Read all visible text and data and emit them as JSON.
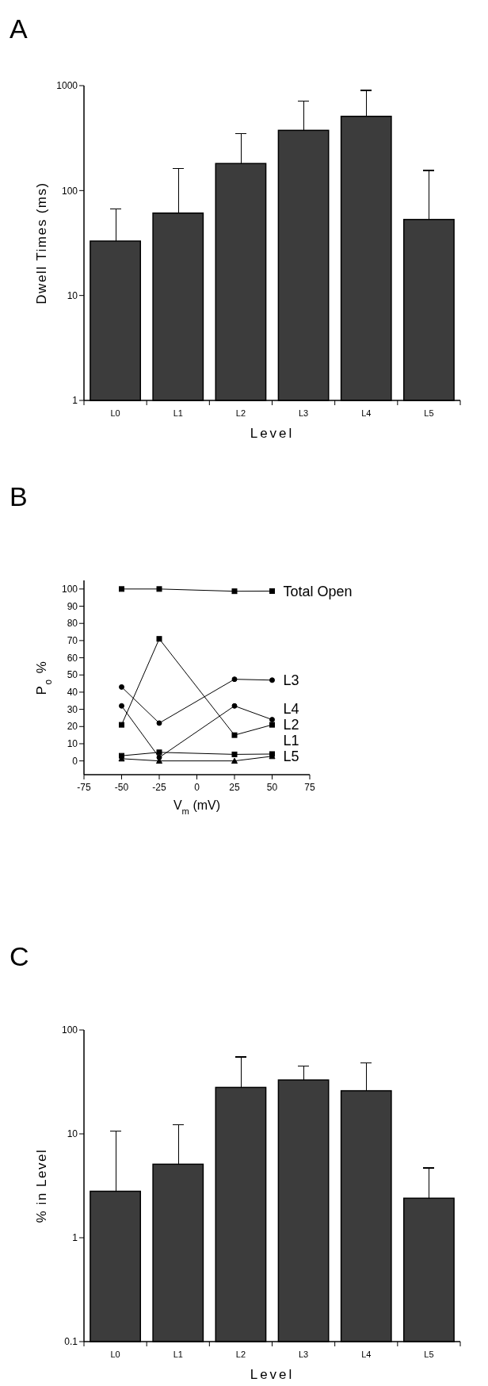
{
  "chart_data": [
    {
      "type": "bar",
      "title": "A",
      "xlabel": "Level",
      "ylabel": "Dwell Times (ms)",
      "categories": [
        "L0",
        "L1",
        "L2",
        "L3",
        "L4",
        "L5"
      ],
      "values": [
        33,
        61,
        181,
        375,
        510,
        53
      ],
      "errors": [
        [
          33,
          67
        ],
        [
          61,
          163
        ],
        [
          181,
          347
        ],
        [
          375,
          714
        ],
        [
          510,
          900
        ],
        [
          53,
          155
        ]
      ],
      "color": "#3c3c3c",
      "log": true,
      "ylim": [
        1,
        1000
      ],
      "yticks": [
        1,
        10,
        100,
        1000
      ]
    },
    {
      "type": "line",
      "title": "B",
      "xlabel": "V$_{m}$ (mV)",
      "ylabel": "P$_{o}$ %",
      "x": [
        -50,
        -25,
        25,
        50
      ],
      "xlim": [
        -75,
        75
      ],
      "xticks": [
        -75,
        -50,
        -25,
        0,
        25,
        50,
        75
      ],
      "ylim": [
        -8,
        105
      ],
      "yticks": [
        0,
        10,
        20,
        30,
        40,
        50,
        60,
        70,
        80,
        90,
        100
      ],
      "series": [
        {
          "name": "Total Open",
          "color": "#000000",
          "marker": "square",
          "values": [
            100,
            100,
            98.7,
            98.8
          ]
        },
        {
          "name": "L3",
          "color": "#000000",
          "marker": "circle",
          "values": [
            43,
            22,
            47.5,
            47
          ]
        },
        {
          "name": "L4",
          "color": "#000000",
          "marker": "circle",
          "values": [
            32,
            2,
            32,
            24
          ]
        },
        {
          "name": "L2",
          "color": "#000000",
          "marker": "square",
          "values": [
            21,
            71,
            15,
            21
          ]
        },
        {
          "name": "L1",
          "color": "#000000",
          "marker": "square",
          "values": [
            3,
            5,
            3.8,
            4
          ]
        },
        {
          "name": "L5",
          "color": "#000000",
          "marker": "triangle",
          "values": [
            1.3,
            0,
            0,
            2.7
          ]
        }
      ]
    },
    {
      "type": "bar",
      "title": "C",
      "xlabel": "Level",
      "ylabel": "% in Level",
      "categories": [
        "L0",
        "L1",
        "L2",
        "L3",
        "L4",
        "L5"
      ],
      "values": [
        2.8,
        5.1,
        28,
        33,
        26,
        2.4
      ],
      "errors": [
        [
          2.8,
          10.7
        ],
        [
          5.1,
          12.3
        ],
        [
          28,
          55
        ],
        [
          33,
          45
        ],
        [
          26,
          48
        ],
        [
          2.4,
          4.7
        ]
      ],
      "color": "#3c3c3c",
      "log": true,
      "ylim": [
        0.1,
        100
      ],
      "yticks": [
        0.1,
        1,
        10,
        100
      ]
    }
  ]
}
